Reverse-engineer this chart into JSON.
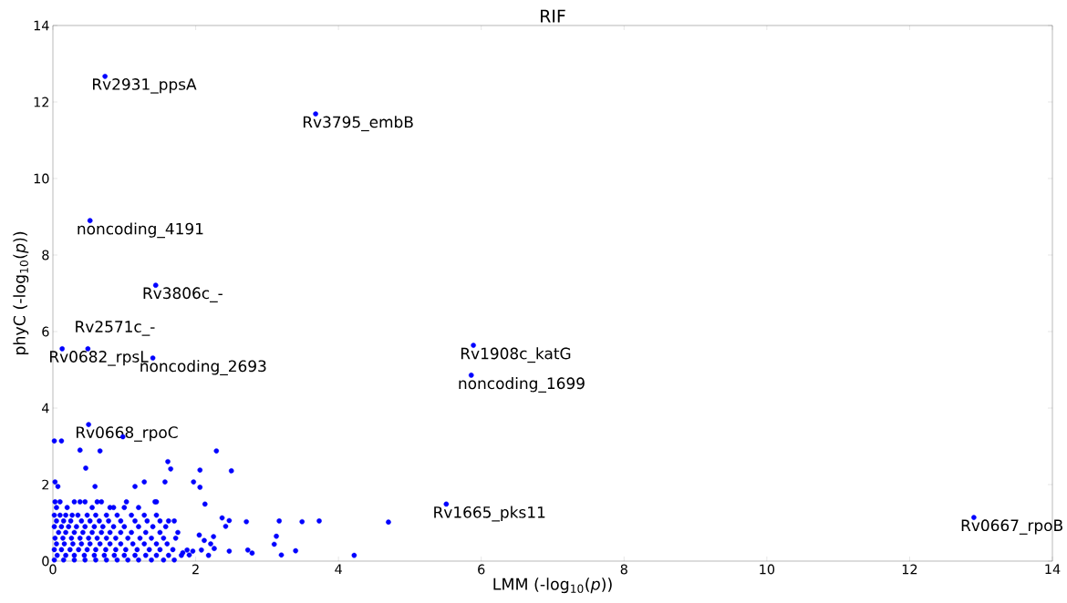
{
  "chart_data": {
    "type": "scatter",
    "title": "RIF",
    "xlabel": "LMM (-log$_{10}$(*p*))",
    "ylabel": "phyC (-log$_{10}$(*p*))",
    "xlim": [
      0,
      14
    ],
    "ylim": [
      0,
      14
    ],
    "xticks": [
      0,
      2,
      4,
      6,
      8,
      10,
      12,
      14
    ],
    "yticks": [
      0,
      2,
      4,
      6,
      8,
      10,
      12,
      14
    ],
    "grid": false,
    "series": [
      {
        "color": "#0000ff",
        "x": [
          0.73,
          3.68,
          0.52,
          1.44,
          0.13,
          0.49,
          1.4,
          5.89,
          5.86,
          0.5,
          5.51,
          12.9,
          0.02,
          0.12,
          0.98,
          0.38,
          0.66,
          2.29,
          0.46,
          1.61,
          1.65,
          2.06,
          2.5,
          0.03,
          0.07,
          0.59,
          1.28,
          1.15,
          1.57,
          1.97,
          2.06,
          2.13,
          2.37,
          2.47,
          2.42,
          2.71,
          3.17,
          3.49,
          3.73,
          3.13,
          3.1,
          2.73,
          2.79,
          2.47,
          3.2,
          3.4,
          2.05,
          2.25,
          2.12,
          2.21,
          2.26,
          2.08,
          1.96,
          2.18,
          1.88,
          1.91,
          1.82,
          4.7,
          4.22,
          0.03,
          0.1,
          0.3,
          0.38,
          0.45,
          0.62,
          0.68,
          1.03,
          1.43,
          1.45,
          0.05,
          0.2,
          0.55,
          0.8,
          0.85,
          1.0,
          1.2,
          0.02,
          0.1,
          0.18,
          0.27,
          0.35,
          0.48,
          0.6,
          0.75,
          0.9,
          1.1,
          1.28,
          1.45,
          0.05,
          0.15,
          0.25,
          0.4,
          0.52,
          0.65,
          0.78,
          0.95,
          1.15,
          1.32,
          1.5,
          1.62,
          1.7,
          0.02,
          0.12,
          0.22,
          0.33,
          0.45,
          0.58,
          0.7,
          0.85,
          1.0,
          1.2,
          1.4,
          1.58,
          0.08,
          0.18,
          0.3,
          0.42,
          0.55,
          0.68,
          0.8,
          0.95,
          1.1,
          1.3,
          1.5,
          1.75,
          0.03,
          0.14,
          0.26,
          0.38,
          0.5,
          0.62,
          0.75,
          0.88,
          1.05,
          1.22,
          1.38,
          1.55,
          1.72,
          0.05,
          0.16,
          0.28,
          0.4,
          0.52,
          0.66,
          0.8,
          0.95,
          1.12,
          1.28,
          1.45,
          1.6,
          0.02,
          0.12,
          0.24,
          0.36,
          0.48,
          0.6,
          0.74,
          0.88,
          1.02,
          1.18,
          1.35,
          1.5,
          1.68,
          0.06,
          0.18,
          0.3,
          0.44,
          0.58,
          0.72,
          0.86,
          1.0,
          1.15,
          1.3,
          1.45,
          1.62,
          1.8,
          0.02,
          0.15,
          0.3,
          0.45,
          0.6,
          0.75,
          0.9,
          1.05,
          1.2,
          1.38,
          1.55,
          1.7
        ],
        "values": [
          12.67,
          11.69,
          8.9,
          7.21,
          5.55,
          5.55,
          5.31,
          5.64,
          4.86,
          3.57,
          1.49,
          1.14,
          3.14,
          3.14,
          3.25,
          2.9,
          2.88,
          2.88,
          2.43,
          2.6,
          2.41,
          2.38,
          2.36,
          2.07,
          1.95,
          1.95,
          2.07,
          1.95,
          2.07,
          2.07,
          1.93,
          1.49,
          1.13,
          1.06,
          0.91,
          1.03,
          1.05,
          1.03,
          1.05,
          0.65,
          0.44,
          0.29,
          0.21,
          0.26,
          0.16,
          0.27,
          0.68,
          0.64,
          0.54,
          0.45,
          0.33,
          0.29,
          0.26,
          0.15,
          0.29,
          0.16,
          0.22,
          1.02,
          0.15,
          1.55,
          1.55,
          1.55,
          1.55,
          1.55,
          1.55,
          1.55,
          1.55,
          1.55,
          1.55,
          1.4,
          1.4,
          1.4,
          1.4,
          1.4,
          1.4,
          1.4,
          1.2,
          1.2,
          1.2,
          1.2,
          1.2,
          1.2,
          1.2,
          1.2,
          1.2,
          1.2,
          1.2,
          1.2,
          1.05,
          1.05,
          1.05,
          1.05,
          1.05,
          1.05,
          1.05,
          1.05,
          1.05,
          1.05,
          1.05,
          1.05,
          1.05,
          0.9,
          0.9,
          0.9,
          0.9,
          0.9,
          0.9,
          0.9,
          0.9,
          0.9,
          0.9,
          0.9,
          0.9,
          0.75,
          0.75,
          0.75,
          0.75,
          0.75,
          0.75,
          0.75,
          0.75,
          0.75,
          0.75,
          0.75,
          0.75,
          0.6,
          0.6,
          0.6,
          0.6,
          0.6,
          0.6,
          0.6,
          0.6,
          0.6,
          0.6,
          0.6,
          0.6,
          0.6,
          0.45,
          0.45,
          0.45,
          0.45,
          0.45,
          0.45,
          0.45,
          0.45,
          0.45,
          0.45,
          0.45,
          0.45,
          0.3,
          0.3,
          0.3,
          0.3,
          0.3,
          0.3,
          0.3,
          0.3,
          0.3,
          0.3,
          0.3,
          0.3,
          0.3,
          0.15,
          0.15,
          0.15,
          0.15,
          0.15,
          0.15,
          0.15,
          0.15,
          0.15,
          0.15,
          0.15,
          0.15,
          0.15,
          0.03,
          0.03,
          0.03,
          0.03,
          0.03,
          0.03,
          0.03,
          0.03,
          0.03,
          0.03,
          0.03,
          0.03
        ]
      }
    ],
    "annotations": [
      {
        "text": "Rv2931_ppsA",
        "x": 0.73,
        "y": 12.67
      },
      {
        "text": "Rv3795_embB",
        "x": 3.68,
        "y": 11.69
      },
      {
        "text": "noncoding_4191",
        "x": 0.52,
        "y": 8.9
      },
      {
        "text": "Rv3806c_-",
        "x": 1.44,
        "y": 7.21
      },
      {
        "text": "Rv0682_rpsL",
        "x": 0.13,
        "y": 5.55
      },
      {
        "text": "Rv2571c_-",
        "x": 0.49,
        "y": 5.55
      },
      {
        "text": "noncoding_2693",
        "x": 1.4,
        "y": 5.31
      },
      {
        "text": "Rv1908c_katG",
        "x": 5.89,
        "y": 5.64
      },
      {
        "text": "noncoding_1699",
        "x": 5.86,
        "y": 4.86
      },
      {
        "text": "Rv0668_rpoC",
        "x": 0.5,
        "y": 3.57
      },
      {
        "text": "Rv1665_pks11",
        "x": 5.51,
        "y": 1.49
      },
      {
        "text": "Rv0667_rpoB",
        "x": 12.9,
        "y": 1.14
      }
    ]
  }
}
